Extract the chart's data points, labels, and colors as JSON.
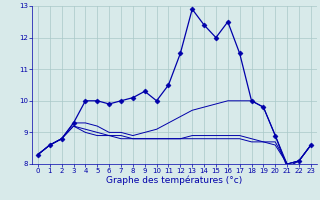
{
  "title": "Graphe des températures (°c)",
  "background_color": "#d8eaea",
  "grid_color": "#aac8c8",
  "line_color": "#0000aa",
  "xlim": [
    -0.5,
    23.5
  ],
  "ylim": [
    8,
    13
  ],
  "yticks": [
    8,
    9,
    10,
    11,
    12,
    13
  ],
  "xticks": [
    0,
    1,
    2,
    3,
    4,
    5,
    6,
    7,
    8,
    9,
    10,
    11,
    12,
    13,
    14,
    15,
    16,
    17,
    18,
    19,
    20,
    21,
    22,
    23
  ],
  "series": [
    {
      "x": [
        0,
        1,
        2,
        3,
        4,
        5,
        6,
        7,
        8,
        9,
        10,
        11,
        12,
        13,
        14,
        15,
        16,
        17,
        18,
        19,
        20,
        21,
        22,
        23
      ],
      "y": [
        8.3,
        8.6,
        8.8,
        9.3,
        10.0,
        10.0,
        9.9,
        10.0,
        10.1,
        10.3,
        10.0,
        10.5,
        11.5,
        12.9,
        12.4,
        12.0,
        12.5,
        11.5,
        10.0,
        9.8,
        8.9,
        7.9,
        8.1,
        8.6
      ],
      "marker": "D",
      "markersize": 2.5,
      "linewidth": 0.9
    },
    {
      "x": [
        0,
        1,
        2,
        3,
        4,
        5,
        6,
        7,
        8,
        9,
        10,
        11,
        12,
        13,
        14,
        15,
        16,
        17,
        18,
        19,
        20,
        21,
        22,
        23
      ],
      "y": [
        8.3,
        8.6,
        8.8,
        9.3,
        9.3,
        9.2,
        9.0,
        9.0,
        8.9,
        9.0,
        9.1,
        9.3,
        9.5,
        9.7,
        9.8,
        9.9,
        10.0,
        10.0,
        10.0,
        9.8,
        8.9,
        8.0,
        8.1,
        8.6
      ],
      "marker": null,
      "markersize": 0,
      "linewidth": 0.7
    },
    {
      "x": [
        0,
        1,
        2,
        3,
        4,
        5,
        6,
        7,
        8,
        9,
        10,
        11,
        12,
        13,
        14,
        15,
        16,
        17,
        18,
        19,
        20,
        21,
        22,
        23
      ],
      "y": [
        8.3,
        8.6,
        8.8,
        9.2,
        9.1,
        9.0,
        8.9,
        8.9,
        8.8,
        8.8,
        8.8,
        8.8,
        8.8,
        8.9,
        8.9,
        8.9,
        8.9,
        8.9,
        8.8,
        8.7,
        8.7,
        8.0,
        8.1,
        8.6
      ],
      "marker": null,
      "markersize": 0,
      "linewidth": 0.7
    },
    {
      "x": [
        0,
        1,
        2,
        3,
        4,
        5,
        6,
        7,
        8,
        9,
        10,
        11,
        12,
        13,
        14,
        15,
        16,
        17,
        18,
        19,
        20,
        21,
        22,
        23
      ],
      "y": [
        8.3,
        8.6,
        8.8,
        9.2,
        9.0,
        8.9,
        8.9,
        8.8,
        8.8,
        8.8,
        8.8,
        8.8,
        8.8,
        8.8,
        8.8,
        8.8,
        8.8,
        8.8,
        8.7,
        8.7,
        8.6,
        8.0,
        8.1,
        8.6
      ],
      "marker": null,
      "markersize": 0,
      "linewidth": 0.7
    }
  ],
  "xlabel_fontsize": 6.5,
  "tick_fontsize": 5.0,
  "fig_width": 3.2,
  "fig_height": 2.0,
  "dpi": 100
}
